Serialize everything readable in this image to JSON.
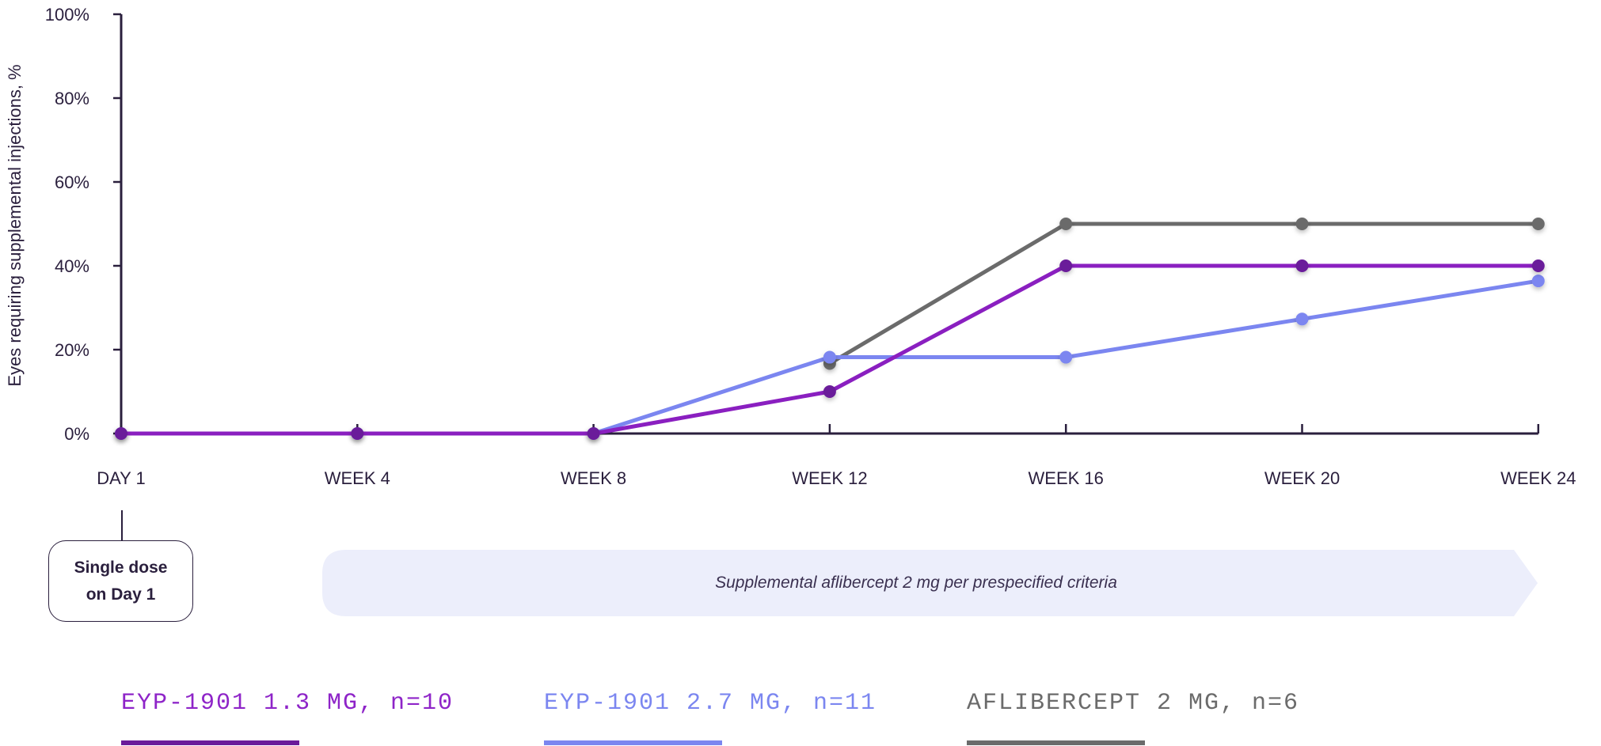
{
  "chart_data": {
    "type": "line",
    "title": "",
    "ylabel": "Eyes requiring supplemental injections, %",
    "xlabel": "",
    "categories": [
      "DAY 1",
      "WEEK 4",
      "WEEK 8",
      "WEEK 12",
      "WEEK 16",
      "WEEK 20",
      "WEEK 24"
    ],
    "yticks": [
      "0%",
      "20%",
      "40%",
      "60%",
      "80%",
      "100%"
    ],
    "ylim": [
      0,
      100
    ],
    "grid": false,
    "legend_position": "bottom",
    "series": [
      {
        "name": "AFLIBERCEPT 2 MG, n=6",
        "color": "#6b6b6b",
        "dot_color": "#6b6b6b",
        "values": [
          null,
          null,
          null,
          16.7,
          50,
          50,
          50
        ]
      },
      {
        "name": "EYP-1901 2.7 MG, n=11",
        "color": "#7b86f0",
        "dot_color": "#7b86f0",
        "values": [
          0,
          0,
          0,
          18.2,
          18.2,
          27.3,
          36.4
        ]
      },
      {
        "name": "EYP-1901 1.3 MG, n=10",
        "color": "#8a1fc0",
        "dot_color": "#6a1b9a",
        "values": [
          0,
          0,
          0,
          10,
          40,
          40,
          40
        ]
      }
    ],
    "annotations": {
      "dose_box": [
        "Single dose",
        "on Day 1"
      ],
      "band": "Supplemental aflibercept 2 mg per prespecified criteria",
      "band_color": "#eceefb"
    }
  },
  "legend": [
    {
      "label": "EYP-1901 1.3 MG, n=10",
      "color": "#8e24c8",
      "line_color": "#6a1b9a"
    },
    {
      "label": "EYP-1901 2.7 MG, n=11",
      "color": "#7b86f0",
      "line_color": "#7b86f0"
    },
    {
      "label": "AFLIBERCEPT 2 MG, n=6",
      "color": "#6b6b6b",
      "line_color": "#6b6b6b"
    }
  ]
}
